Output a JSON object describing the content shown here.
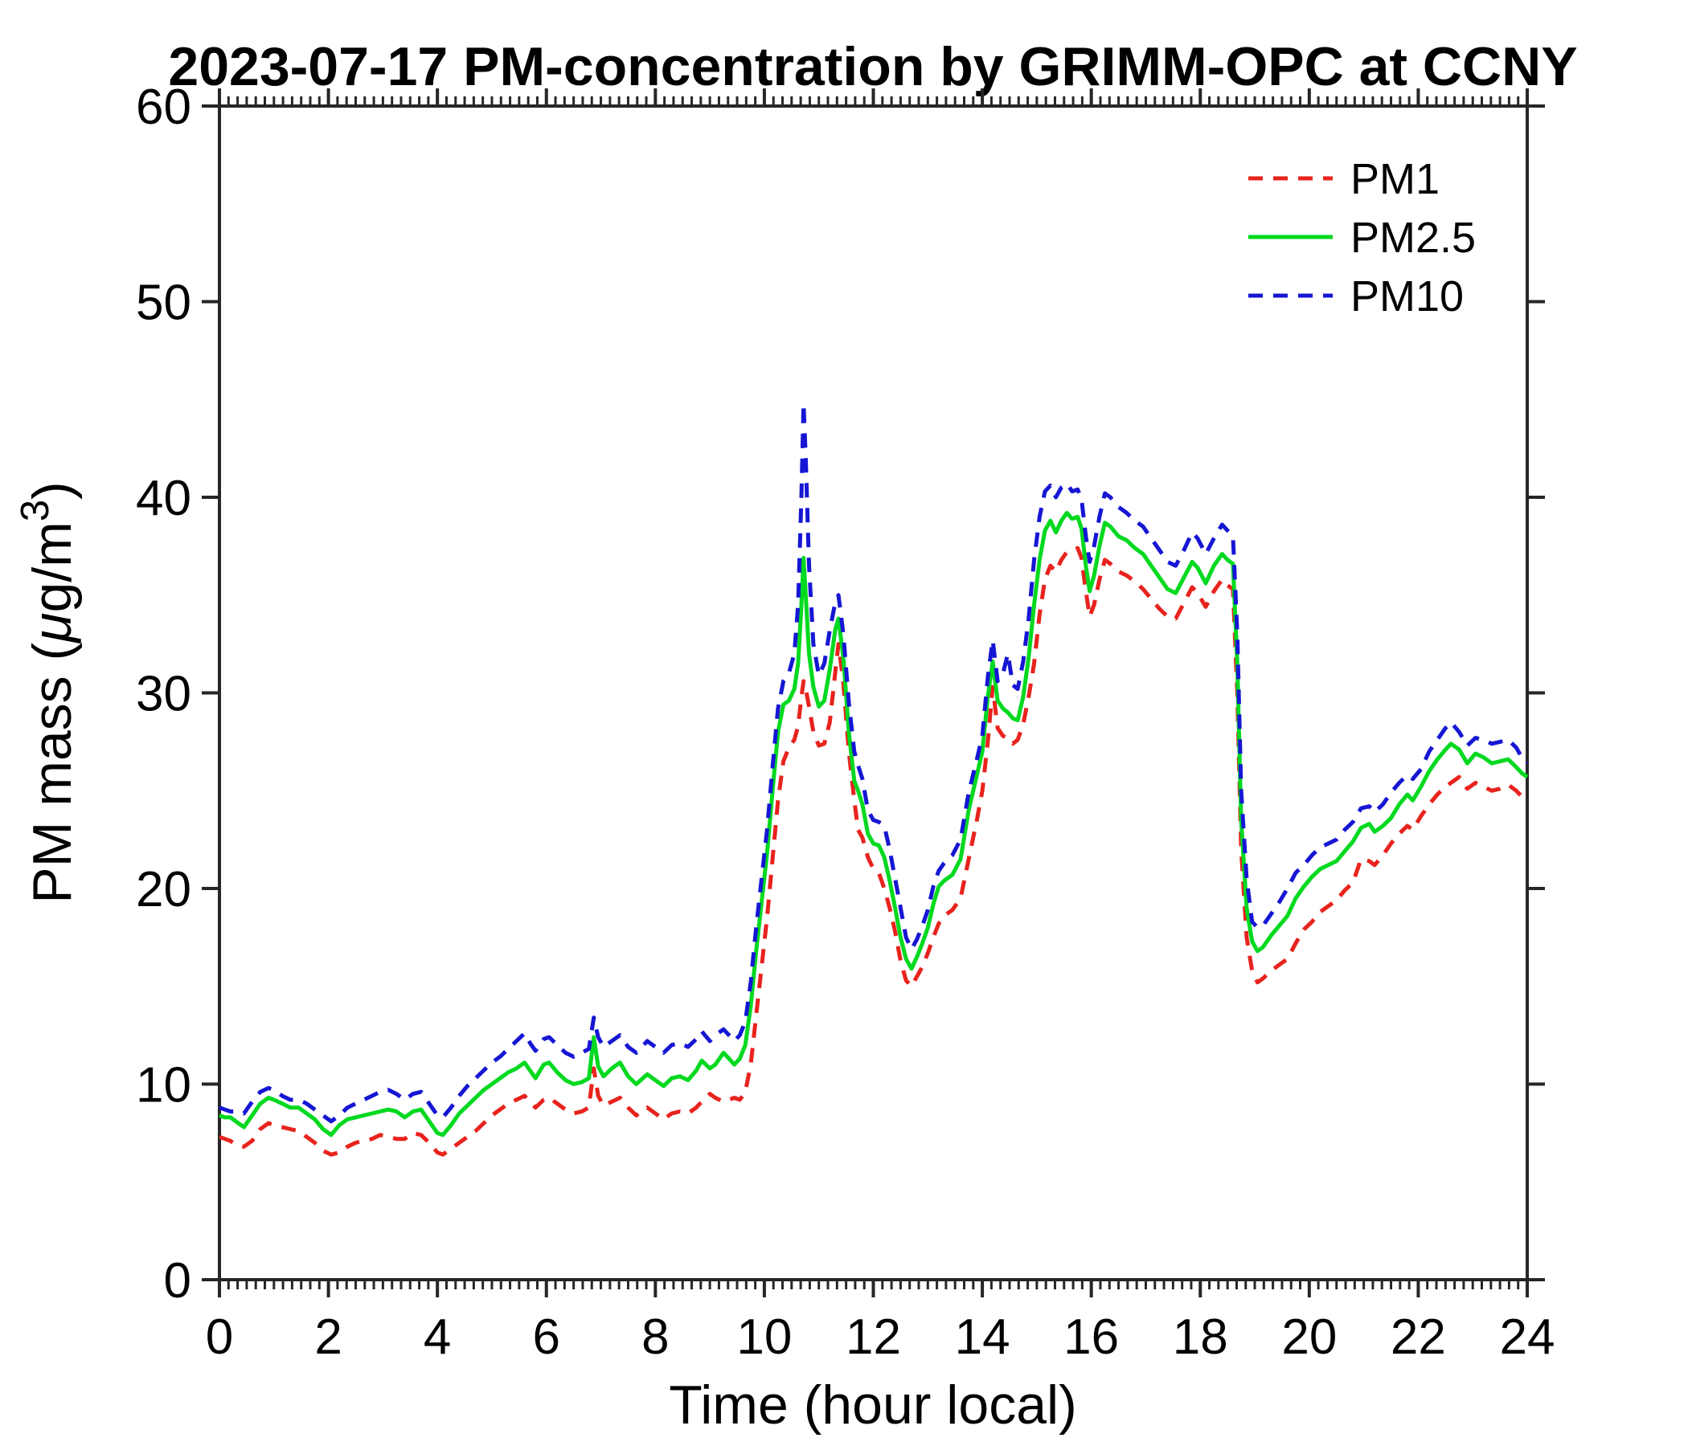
{
  "figure": {
    "background": "#ffffff",
    "axes_color": "#262626"
  },
  "chart_data": {
    "type": "line",
    "title": "2023-07-17 PM-concentration by GRIMM-OPC at CCNY",
    "xlabel": "Time (hour local)",
    "ylabel": "PM mass (μg/m³)",
    "ylabel_parts": {
      "pre": "PM mass (",
      "mu": "μ",
      "mid": "g/m",
      "sup": "3",
      "post": ")"
    },
    "xlim": [
      0,
      24
    ],
    "ylim": [
      0,
      60
    ],
    "x_ticks": [
      0,
      2,
      4,
      6,
      8,
      10,
      12,
      14,
      16,
      18,
      20,
      22,
      24
    ],
    "y_ticks": [
      0,
      10,
      20,
      30,
      40,
      50,
      60
    ],
    "x_minor_tick_interval": 0.1667,
    "grid": false,
    "legend_position": "top-right-inside",
    "x": [
      0,
      0.1,
      0.2,
      0.3,
      0.45,
      0.6,
      0.75,
      0.9,
      1.0,
      1.15,
      1.3,
      1.45,
      1.6,
      1.75,
      1.9,
      2.05,
      2.2,
      2.35,
      2.5,
      2.65,
      2.8,
      2.95,
      3.1,
      3.25,
      3.4,
      3.55,
      3.7,
      3.85,
      4.0,
      4.1,
      4.25,
      4.4,
      4.55,
      4.7,
      4.85,
      5.0,
      5.15,
      5.3,
      5.45,
      5.6,
      5.7,
      5.8,
      5.95,
      6.05,
      6.2,
      6.35,
      6.5,
      6.65,
      6.78,
      6.87,
      6.95,
      7.05,
      7.2,
      7.35,
      7.5,
      7.65,
      7.85,
      8.0,
      8.15,
      8.3,
      8.45,
      8.6,
      8.75,
      8.85,
      9.0,
      9.1,
      9.25,
      9.35,
      9.45,
      9.55,
      9.65,
      9.75,
      9.85,
      9.95,
      10.05,
      10.15,
      10.25,
      10.35,
      10.45,
      10.55,
      10.62,
      10.68,
      10.72,
      10.76,
      10.82,
      10.9,
      11.0,
      11.1,
      11.2,
      11.3,
      11.36,
      11.45,
      11.55,
      11.65,
      11.72,
      11.8,
      11.9,
      12.0,
      12.1,
      12.2,
      12.3,
      12.4,
      12.5,
      12.6,
      12.7,
      12.8,
      12.9,
      13.0,
      13.1,
      13.2,
      13.3,
      13.45,
      13.6,
      13.75,
      13.9,
      14.0,
      14.1,
      14.19,
      14.28,
      14.38,
      14.47,
      14.56,
      14.65,
      14.75,
      14.85,
      14.95,
      15.05,
      15.15,
      15.25,
      15.35,
      15.45,
      15.55,
      15.65,
      15.75,
      15.82,
      15.9,
      15.97,
      16.05,
      16.15,
      16.25,
      16.35,
      16.5,
      16.65,
      16.8,
      16.95,
      17.1,
      17.25,
      17.4,
      17.55,
      17.7,
      17.85,
      17.95,
      18.1,
      18.25,
      18.4,
      18.5,
      18.6,
      18.68,
      18.75,
      18.85,
      18.95,
      19.05,
      19.15,
      19.3,
      19.45,
      19.6,
      19.75,
      19.9,
      20.05,
      20.2,
      20.35,
      20.5,
      20.65,
      20.8,
      20.95,
      21.1,
      21.2,
      21.35,
      21.5,
      21.65,
      21.8,
      21.9,
      22.05,
      22.2,
      22.35,
      22.5,
      22.6,
      22.75,
      22.9,
      23.05,
      23.2,
      23.35,
      23.5,
      23.65,
      23.8,
      23.9,
      24.0
    ],
    "series": [
      {
        "name": "PM1",
        "color": "#e8231d",
        "style": "dashed",
        "values": [
          7.3,
          7.2,
          7.1,
          6.9,
          6.8,
          7.1,
          7.7,
          8.0,
          7.9,
          7.8,
          7.7,
          7.6,
          7.3,
          7.0,
          6.6,
          6.4,
          6.5,
          6.8,
          7.0,
          7.1,
          7.2,
          7.4,
          7.3,
          7.2,
          7.2,
          7.5,
          7.4,
          7.0,
          6.5,
          6.4,
          6.7,
          7.0,
          7.3,
          7.6,
          8.0,
          8.4,
          8.7,
          9.0,
          9.2,
          9.4,
          9.1,
          8.8,
          9.2,
          9.3,
          9.0,
          8.7,
          8.5,
          8.6,
          8.8,
          10.8,
          9.4,
          8.9,
          9.1,
          9.3,
          8.8,
          8.4,
          8.8,
          8.5,
          8.2,
          8.5,
          8.6,
          8.5,
          8.8,
          9.1,
          9.5,
          9.3,
          9.1,
          9.2,
          9.3,
          9.2,
          9.6,
          11.0,
          13.5,
          16.0,
          18.5,
          21.5,
          24.5,
          26.5,
          27.2,
          27.6,
          28.3,
          29.8,
          30.6,
          30.2,
          29.3,
          28.0,
          27.3,
          27.4,
          28.5,
          31.0,
          32.5,
          30.5,
          27.0,
          24.5,
          23.0,
          22.6,
          21.6,
          21.0,
          20.8,
          20.0,
          19.0,
          17.8,
          16.3,
          15.3,
          15.0,
          15.5,
          16.0,
          16.7,
          17.5,
          18.2,
          18.6,
          18.9,
          19.5,
          21.5,
          23.5,
          25.0,
          27.5,
          30.3,
          28.2,
          27.8,
          27.7,
          27.4,
          27.6,
          28.4,
          29.8,
          31.5,
          34.0,
          35.8,
          36.5,
          36.2,
          36.8,
          37.2,
          37.3,
          37.4,
          36.9,
          35.2,
          33.9,
          34.5,
          35.8,
          36.8,
          36.6,
          36.2,
          36.0,
          35.7,
          35.3,
          34.8,
          34.3,
          33.9,
          33.8,
          34.6,
          35.4,
          35.1,
          34.4,
          35.2,
          35.8,
          35.5,
          35.3,
          30.0,
          22.0,
          17.5,
          15.8,
          15.2,
          15.4,
          15.8,
          16.1,
          16.4,
          17.2,
          17.9,
          18.3,
          18.8,
          19.1,
          19.4,
          19.9,
          20.3,
          21.5,
          21.4,
          21.2,
          21.7,
          22.3,
          22.8,
          23.2,
          23.0,
          23.7,
          24.3,
          24.8,
          25.2,
          25.4,
          25.7,
          25.1,
          25.4,
          25.2,
          25.0,
          25.1,
          25.3,
          25.0,
          24.7,
          24.5
        ]
      },
      {
        "name": "PM2.5",
        "color": "#00d91f",
        "style": "solid",
        "values": [
          8.4,
          8.3,
          8.3,
          8.1,
          7.8,
          8.4,
          9.0,
          9.3,
          9.2,
          9.0,
          8.8,
          8.8,
          8.5,
          8.2,
          7.7,
          7.4,
          7.9,
          8.2,
          8.3,
          8.4,
          8.5,
          8.6,
          8.7,
          8.6,
          8.3,
          8.6,
          8.7,
          8.1,
          7.5,
          7.4,
          7.9,
          8.5,
          8.9,
          9.3,
          9.7,
          10.0,
          10.3,
          10.6,
          10.8,
          11.1,
          10.7,
          10.3,
          11.0,
          11.1,
          10.6,
          10.2,
          10.0,
          10.1,
          10.3,
          12.4,
          10.9,
          10.4,
          10.8,
          11.1,
          10.4,
          10.0,
          10.5,
          10.2,
          9.9,
          10.3,
          10.4,
          10.2,
          10.7,
          11.2,
          10.8,
          11.0,
          11.6,
          11.3,
          11.0,
          11.3,
          12.0,
          14.0,
          16.8,
          19.3,
          21.8,
          25.0,
          28.0,
          29.4,
          29.6,
          30.2,
          31.5,
          34.5,
          36.9,
          35.0,
          32.0,
          30.3,
          29.3,
          29.6,
          31.2,
          33.2,
          33.8,
          31.8,
          28.0,
          25.5,
          25.0,
          24.3,
          22.8,
          22.3,
          22.2,
          21.6,
          20.4,
          19.0,
          17.5,
          16.4,
          15.9,
          16.5,
          17.2,
          18.0,
          19.2,
          20.1,
          20.4,
          20.7,
          21.5,
          24.0,
          25.8,
          27.0,
          29.8,
          31.6,
          29.6,
          29.2,
          29.0,
          28.7,
          28.6,
          29.8,
          31.8,
          34.5,
          36.8,
          38.3,
          38.8,
          38.2,
          38.8,
          39.2,
          38.9,
          39.0,
          38.4,
          36.5,
          35.2,
          36.0,
          37.5,
          38.7,
          38.5,
          38.0,
          37.8,
          37.4,
          37.1,
          36.5,
          35.9,
          35.3,
          35.1,
          35.9,
          36.7,
          36.4,
          35.6,
          36.5,
          37.1,
          36.8,
          36.6,
          31.5,
          23.5,
          19.0,
          17.3,
          16.8,
          17.0,
          17.6,
          18.1,
          18.6,
          19.5,
          20.1,
          20.6,
          21.0,
          21.2,
          21.4,
          21.9,
          22.4,
          23.1,
          23.3,
          22.9,
          23.2,
          23.6,
          24.3,
          24.8,
          24.5,
          25.2,
          26.0,
          26.6,
          27.1,
          27.4,
          27.1,
          26.4,
          26.9,
          26.7,
          26.4,
          26.5,
          26.6,
          26.2,
          25.9,
          25.7
        ]
      },
      {
        "name": "PM10",
        "color": "#1616d4",
        "style": "dashed",
        "values": [
          8.8,
          8.7,
          8.6,
          8.6,
          8.5,
          9.1,
          9.6,
          9.8,
          9.7,
          9.4,
          9.2,
          9.2,
          9.0,
          8.7,
          8.4,
          8.1,
          8.4,
          8.8,
          9.0,
          9.2,
          9.4,
          9.6,
          9.7,
          9.5,
          9.2,
          9.5,
          9.6,
          9.0,
          8.4,
          8.3,
          8.8,
          9.4,
          9.9,
          10.3,
          10.7,
          11.1,
          11.4,
          11.8,
          12.2,
          12.6,
          12.1,
          11.7,
          12.3,
          12.4,
          12.0,
          11.6,
          11.4,
          11.6,
          11.8,
          13.4,
          12.4,
          11.9,
          12.2,
          12.5,
          11.9,
          11.6,
          12.2,
          11.9,
          11.6,
          12.0,
          12.1,
          11.9,
          12.3,
          12.7,
          12.2,
          12.5,
          12.8,
          12.5,
          12.2,
          12.5,
          13.2,
          15.2,
          18.0,
          20.5,
          23.0,
          26.2,
          29.2,
          30.6,
          31.0,
          32.0,
          34.5,
          40.0,
          44.8,
          42.0,
          36.5,
          32.5,
          30.9,
          31.5,
          33.2,
          34.6,
          35.0,
          33.0,
          29.5,
          27.0,
          26.3,
          25.6,
          24.0,
          23.5,
          23.4,
          23.2,
          22.0,
          20.5,
          19.0,
          17.5,
          16.9,
          17.4,
          18.1,
          18.9,
          20.1,
          20.9,
          21.3,
          21.7,
          22.5,
          24.9,
          26.6,
          27.8,
          30.8,
          32.7,
          30.6,
          31.0,
          32.0,
          30.4,
          30.2,
          31.6,
          33.8,
          36.8,
          39.0,
          40.3,
          40.6,
          40.0,
          40.5,
          40.7,
          40.3,
          40.4,
          39.9,
          38.0,
          36.7,
          37.5,
          39.0,
          40.2,
          40.0,
          39.5,
          39.2,
          38.8,
          38.5,
          37.9,
          37.3,
          36.7,
          36.5,
          37.3,
          38.2,
          37.9,
          37.1,
          37.9,
          38.6,
          38.3,
          38.0,
          33.0,
          25.0,
          20.5,
          18.3,
          18.0,
          18.1,
          18.7,
          19.3,
          20.0,
          20.8,
          21.2,
          21.7,
          22.1,
          22.3,
          22.5,
          23.0,
          23.4,
          24.1,
          24.2,
          23.9,
          24.3,
          24.9,
          25.4,
          25.8,
          25.6,
          26.1,
          27.0,
          27.6,
          28.2,
          28.5,
          28.0,
          27.3,
          27.7,
          27.6,
          27.4,
          27.5,
          27.6,
          27.2,
          26.7,
          26.4
        ]
      }
    ]
  }
}
